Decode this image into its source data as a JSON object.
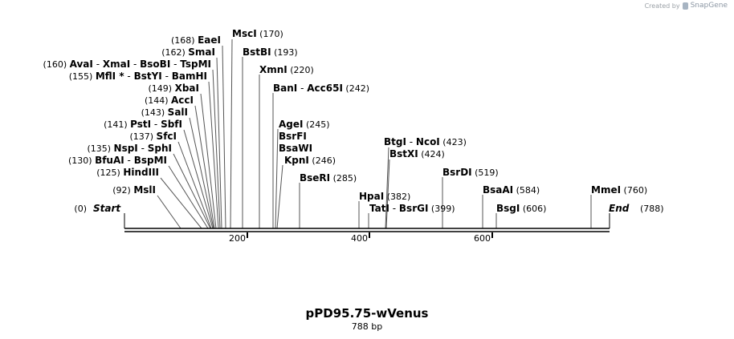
{
  "credit": {
    "prefix": "Created by",
    "brand": "SnapGene"
  },
  "map": {
    "name": "pPD95.75-wVenus",
    "length_label": "788 bp",
    "start_label": "Start",
    "end_label": "End",
    "start_pos": "(0)",
    "end_pos": "(788)",
    "ticks": [
      "200",
      "400",
      "600"
    ]
  },
  "sites_left": [
    {
      "pos": "(168)",
      "names": [
        "EaeI"
      ]
    },
    {
      "pos": "(162)",
      "names": [
        "SmaI"
      ]
    },
    {
      "pos": "(160)",
      "names": [
        "AvaI",
        "XmaI",
        "BsoBI",
        "TspMI"
      ]
    },
    {
      "pos": "(155)",
      "names": [
        "MflI *",
        "BstYI",
        "BamHI"
      ]
    },
    {
      "pos": "(149)",
      "names": [
        "XbaI"
      ]
    },
    {
      "pos": "(144)",
      "names": [
        "AccI"
      ]
    },
    {
      "pos": "(143)",
      "names": [
        "SalI"
      ]
    },
    {
      "pos": "(141)",
      "names": [
        "PstI",
        "SbfI"
      ]
    },
    {
      "pos": "(137)",
      "names": [
        "SfcI"
      ]
    },
    {
      "pos": "(135)",
      "names": [
        "NspI",
        "SphI"
      ]
    },
    {
      "pos": "(130)",
      "names": [
        "BfuAI",
        "BspMI"
      ]
    },
    {
      "pos": "(125)",
      "names": [
        "HindIII"
      ]
    },
    {
      "pos": "(92)",
      "names": [
        "MslI"
      ]
    }
  ],
  "sites_right": [
    {
      "pos": "(170)",
      "names": [
        "MscI"
      ]
    },
    {
      "pos": "(193)",
      "names": [
        "BstBI"
      ]
    },
    {
      "pos": "(220)",
      "names": [
        "XmnI"
      ]
    },
    {
      "pos": "(242)",
      "names": [
        "BanI",
        "Acc65I"
      ]
    },
    {
      "pos": "(245)",
      "names": [
        "AgeI"
      ]
    },
    {
      "pos": "",
      "names": [
        "BsrFI"
      ]
    },
    {
      "pos": "",
      "names": [
        "BsaWI"
      ]
    },
    {
      "pos": "(246)",
      "names": [
        "KpnI"
      ]
    },
    {
      "pos": "(285)",
      "names": [
        "BseRI"
      ]
    },
    {
      "pos": "(382)",
      "names": [
        "HpaI"
      ]
    },
    {
      "pos": "(399)",
      "names": [
        "TatI",
        "BsrGI"
      ]
    },
    {
      "pos": "(423)",
      "names": [
        "BtgI",
        "NcoI"
      ]
    },
    {
      "pos": "(424)",
      "names": [
        "BstXI"
      ]
    },
    {
      "pos": "(519)",
      "names": [
        "BsrDI"
      ]
    },
    {
      "pos": "(584)",
      "names": [
        "BsaAI"
      ]
    },
    {
      "pos": "(606)",
      "names": [
        "BsgI"
      ]
    },
    {
      "pos": "(760)",
      "names": [
        "MmeI"
      ]
    }
  ]
}
